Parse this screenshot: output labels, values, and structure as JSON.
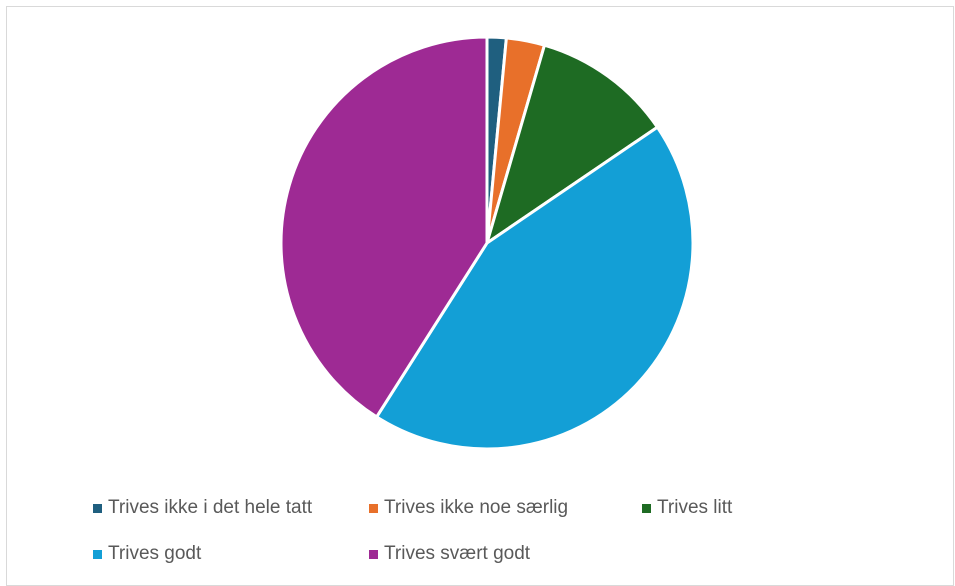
{
  "chart_data": {
    "type": "pie",
    "title": "",
    "legend_position": "bottom",
    "series": [
      {
        "categories": [
          "Trives ikke i det hele tatt",
          "Trives ikke noe særlig",
          "Trives litt",
          "Trives godt",
          "Trives svært godt"
        ],
        "values": [
          1.5,
          3.0,
          11.0,
          43.5,
          41.0
        ],
        "colors": [
          "#1f5f7f",
          "#e8702a",
          "#1e6b23",
          "#139fd6",
          "#9e2a94"
        ]
      }
    ]
  }
}
